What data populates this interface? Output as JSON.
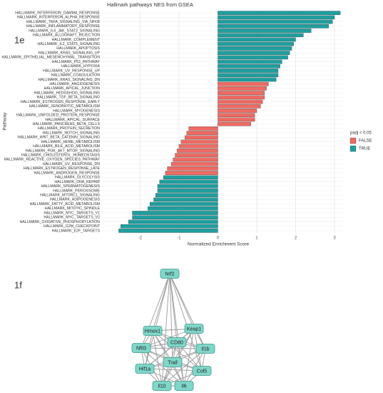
{
  "chart_data": {
    "type": "bar",
    "orientation": "horizontal",
    "panel_label": "1e",
    "title": "Hallmark pathways NES from GSEA",
    "x_label": "Normalized Enrichment Score",
    "y_label": "Pathway",
    "legend_title": "padj < 0.05",
    "legend_position": "right",
    "grid": true,
    "xlim": [
      -2.98,
      3.22
    ],
    "xticks": [
      -2,
      -1,
      0,
      1,
      2,
      3
    ],
    "categories": [
      "HALLMARK_INTERFERON_GAMMA_RESPONSE",
      "HALLMARK_INTERFERON_ALPHA_RESPONSE",
      "HALLMARK_TNFA_SIGNALING_VIA_NFKB",
      "HALLMARK_INFLAMMATORY_RESPONSE",
      "HALLMARK_IL6_JAK_STAT3_SIGNALING",
      "HALLMARK_ALLOGRAFT_REJECTION",
      "HALLMARK_COMPLEMENT",
      "HALLMARK_IL2_STAT5_SIGNALING",
      "HALLMARK_APOPTOSIS",
      "HALLMARK_KRAS_SIGNALING_UP",
      "HALLMARK_EPITHELIAL_MESENCHYMAL_TRANSITION",
      "HALLMARK_P53_PATHWAY",
      "HALLMARK_HYPOXIA",
      "HALLMARK_UV_RESPONSE_UP",
      "HALLMARK_COAGULATION",
      "HALLMARK_KRAS_SIGNALING_DN",
      "HALLMARK_ANGIOGENESIS",
      "HALLMARK_APICAL_JUNCTION",
      "HALLMARK_HEDGEHOG_SIGNALING",
      "HALLMARK_TGF_BETA_SIGNALING",
      "HALLMARK_ESTROGEN_RESPONSE_EARLY",
      "HALLMARK_XENOBIOTIC_METABOLISM",
      "HALLMARK_MYOGENESIS",
      "HALLMARK_UNFOLDED_PROTEIN_RESPONSE",
      "HALLMARK_APICAL_SURFACE",
      "HALLMARK_PANCREAS_BETA_CELLS",
      "HALLMARK_PROTEIN_SECRETION",
      "HALLMARK_NOTCH_SIGNALING",
      "HALLMARK_WNT_BETA_CATENIN_SIGNALING",
      "HALLMARK_HEME_METABOLISM",
      "HALLMARK_BILE_ACID_METABOLISM",
      "HALLMARK_PI3K_AKT_MTOR_SIGNALING",
      "HALLMARK_CHOLESTEROL_HOMEOSTASIS",
      "HALLMARK_REACTIVE_OXYGEN_SPECIES_PATHWAY",
      "HALLMARK_UV_RESPONSE_DN",
      "HALLMARK_ESTROGEN_RESPONSE_LATE",
      "HALLMARK_ANDROGEN_RESPONSE",
      "HALLMARK_GLYCOLYSIS",
      "HALLMARK_DNA_REPAIR",
      "HALLMARK_SPERMATOGENESIS",
      "HALLMARK_PEROXISOME",
      "HALLMARK_MTORC1_SIGNALING",
      "HALLMARK_ADIPOGENESIS",
      "HALLMARK_FATTY_ACID_METABOLISM",
      "HALLMARK_MITOTIC_SPINDLE",
      "HALLMARK_MYC_TARGETS_V1",
      "HALLMARK_MYC_TARGETS_V2",
      "HALLMARK_OXIDATIVE_PHOSPHORYLATION",
      "HALLMARK_G2M_CHECKPOINT",
      "HALLMARK_E2F_TARGETS"
    ],
    "series": [
      {
        "name": "FALSE",
        "color": "#ee6a63",
        "values": [
          null,
          null,
          null,
          null,
          null,
          null,
          null,
          null,
          null,
          null,
          null,
          null,
          null,
          null,
          null,
          null,
          1.3,
          1.25,
          1.2,
          1.2,
          1.15,
          1.1,
          1.0,
          0.95,
          0.95,
          0.85,
          -0.75,
          -0.8,
          -0.85,
          -0.95,
          -1.0,
          -1.05,
          -1.1,
          -1.15,
          -1.2,
          -1.3,
          -1.35,
          null,
          null,
          null,
          null,
          null,
          null,
          null,
          null,
          null,
          null,
          null,
          null,
          null
        ]
      },
      {
        "name": "TRUE",
        "color": "#1f9e9f",
        "values": [
          3.15,
          3.0,
          2.95,
          2.85,
          2.4,
          2.2,
          2.0,
          1.95,
          1.9,
          1.85,
          1.8,
          1.65,
          1.6,
          1.55,
          1.55,
          1.5,
          null,
          null,
          null,
          null,
          null,
          null,
          null,
          null,
          null,
          null,
          null,
          null,
          null,
          null,
          null,
          null,
          null,
          null,
          null,
          null,
          null,
          -1.4,
          -1.5,
          -1.55,
          -1.55,
          -1.6,
          -1.65,
          -1.75,
          -1.8,
          -2.2,
          -2.2,
          -2.3,
          -2.5,
          -2.55
        ]
      }
    ]
  },
  "network": {
    "panel_label": "1f",
    "nodes": [
      "Nrf2",
      "Hmox1",
      "Keap1",
      "Nfil3",
      "CD80",
      "Il1b",
      "Hif1a",
      "Trail",
      "Col5",
      "Il10",
      "Il6"
    ]
  }
}
